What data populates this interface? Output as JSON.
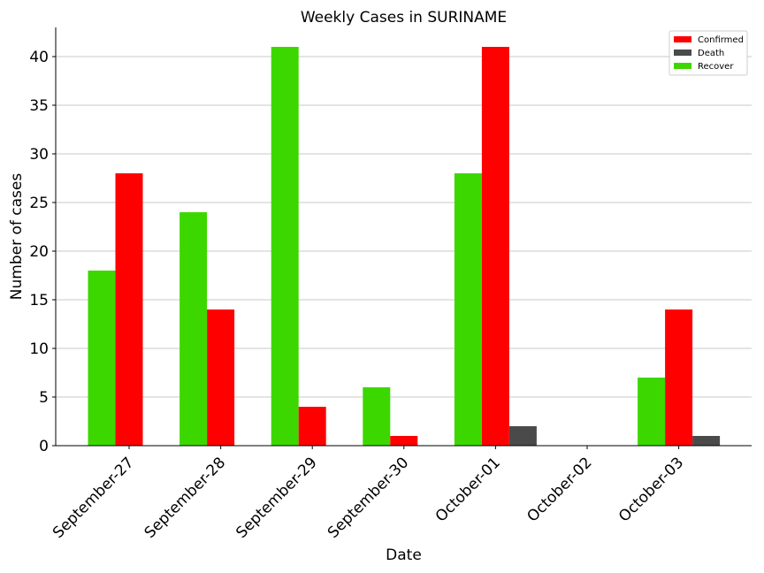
{
  "chart_data": {
    "type": "bar",
    "title": "Weekly Cases in SURINAME",
    "xlabel": "Date",
    "ylabel": "Number of cases",
    "categories": [
      "September-27",
      "September-28",
      "September-29",
      "September-30",
      "October-01",
      "October-02",
      "October-03"
    ],
    "series": [
      {
        "name": "Recover",
        "color": "#3dd700",
        "values": [
          18,
          24,
          41,
          6,
          28,
          0,
          7
        ]
      },
      {
        "name": "Confirmed",
        "color": "#ff0000",
        "values": [
          28,
          14,
          4,
          1,
          41,
          0,
          14
        ]
      },
      {
        "name": "Death",
        "color": "#4a4a4a",
        "values": [
          0,
          0,
          0,
          0,
          2,
          0,
          1
        ]
      }
    ],
    "legend_order": [
      "Confirmed",
      "Death",
      "Recover"
    ],
    "legend_position": "top-right",
    "ylim": [
      0,
      43
    ],
    "yticks": [
      0,
      5,
      10,
      15,
      20,
      25,
      30,
      35,
      40
    ],
    "grid": "horizontal"
  }
}
